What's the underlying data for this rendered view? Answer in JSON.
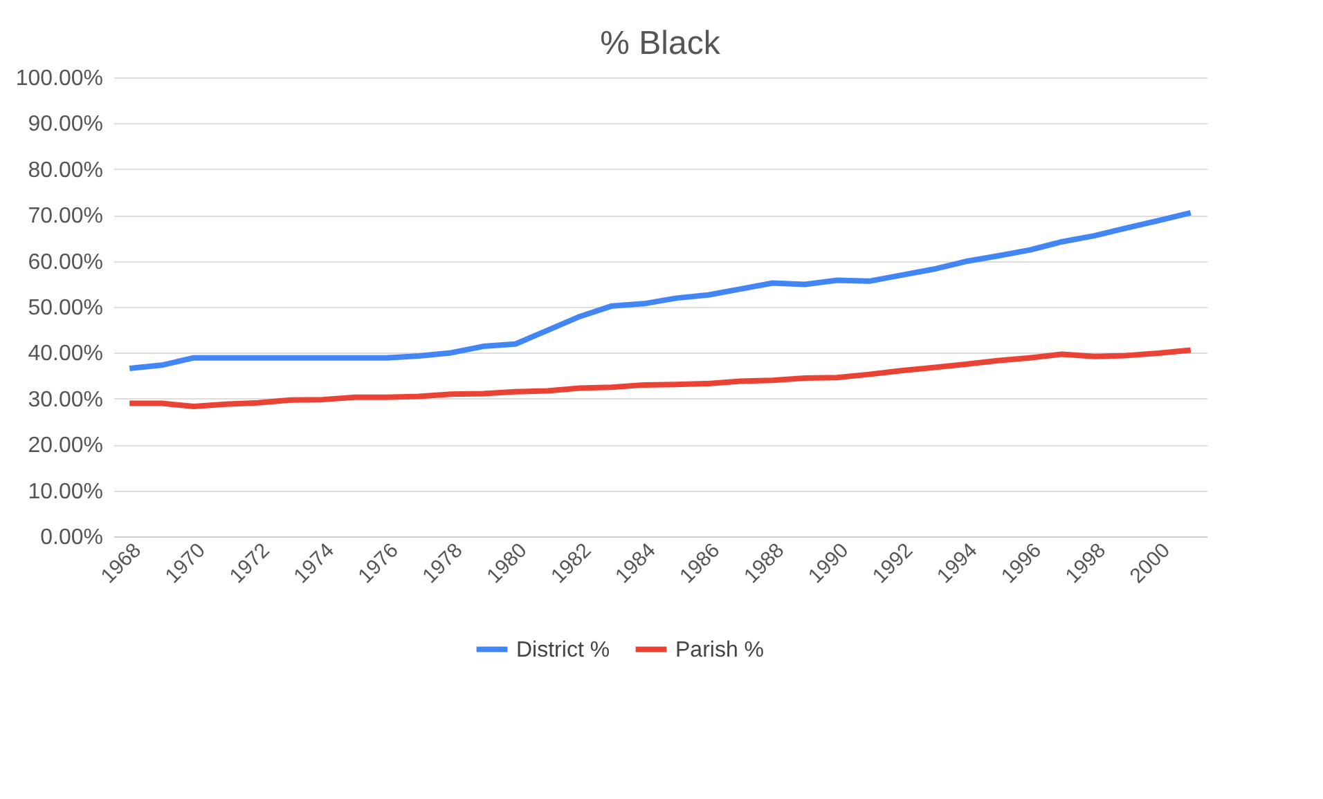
{
  "chart_data": {
    "type": "line",
    "title": "% Black",
    "categories": [
      "1968",
      null,
      "1970",
      null,
      "1972",
      null,
      "1974",
      null,
      "1976",
      null,
      "1978",
      null,
      "1980",
      null,
      "1982",
      null,
      "1984",
      null,
      "1986",
      null,
      "1988",
      null,
      "1990",
      null,
      "1992",
      null,
      "1994",
      null,
      "1996",
      null,
      "1998",
      null,
      "2000",
      null
    ],
    "series": [
      {
        "name": "District %",
        "color": "#4285f4",
        "values": [
          36.6,
          37.3,
          38.9,
          38.9,
          38.9,
          38.9,
          38.9,
          38.9,
          38.9,
          39.3,
          40.0,
          41.4,
          41.9,
          44.9,
          47.9,
          50.2,
          50.7,
          51.9,
          52.6,
          53.9,
          55.2,
          54.9,
          55.8,
          55.6,
          56.9,
          58.2,
          59.9,
          61.1,
          62.4,
          64.2,
          65.5,
          67.2,
          68.8,
          70.5
        ]
      },
      {
        "name": "Parish %",
        "color": "#ea4335",
        "values": [
          29.0,
          29.0,
          28.3,
          28.8,
          29.1,
          29.7,
          29.8,
          30.3,
          30.3,
          30.5,
          31.0,
          31.1,
          31.5,
          31.7,
          32.3,
          32.5,
          33.0,
          33.1,
          33.3,
          33.8,
          34.0,
          34.5,
          34.6,
          35.3,
          36.1,
          36.8,
          37.5,
          38.3,
          38.9,
          39.7,
          39.2,
          39.4,
          39.9,
          40.6
        ]
      }
    ],
    "ylim": [
      0,
      100
    ],
    "yticks": [
      {
        "value": 0,
        "label": "0.00%"
      },
      {
        "value": 10,
        "label": "10.00%"
      },
      {
        "value": 20,
        "label": "20.00%"
      },
      {
        "value": 30,
        "label": "30.00%"
      },
      {
        "value": 40,
        "label": "40.00%"
      },
      {
        "value": 50,
        "label": "50.00%"
      },
      {
        "value": 60,
        "label": "60.00%"
      },
      {
        "value": 70,
        "label": "70.00%"
      },
      {
        "value": 80,
        "label": "80.00%"
      },
      {
        "value": 90,
        "label": "90.00%"
      },
      {
        "value": 100,
        "label": "100.00%"
      }
    ],
    "grid": "y",
    "legend": "bottom",
    "marker": "none",
    "line_style": "solid"
  }
}
